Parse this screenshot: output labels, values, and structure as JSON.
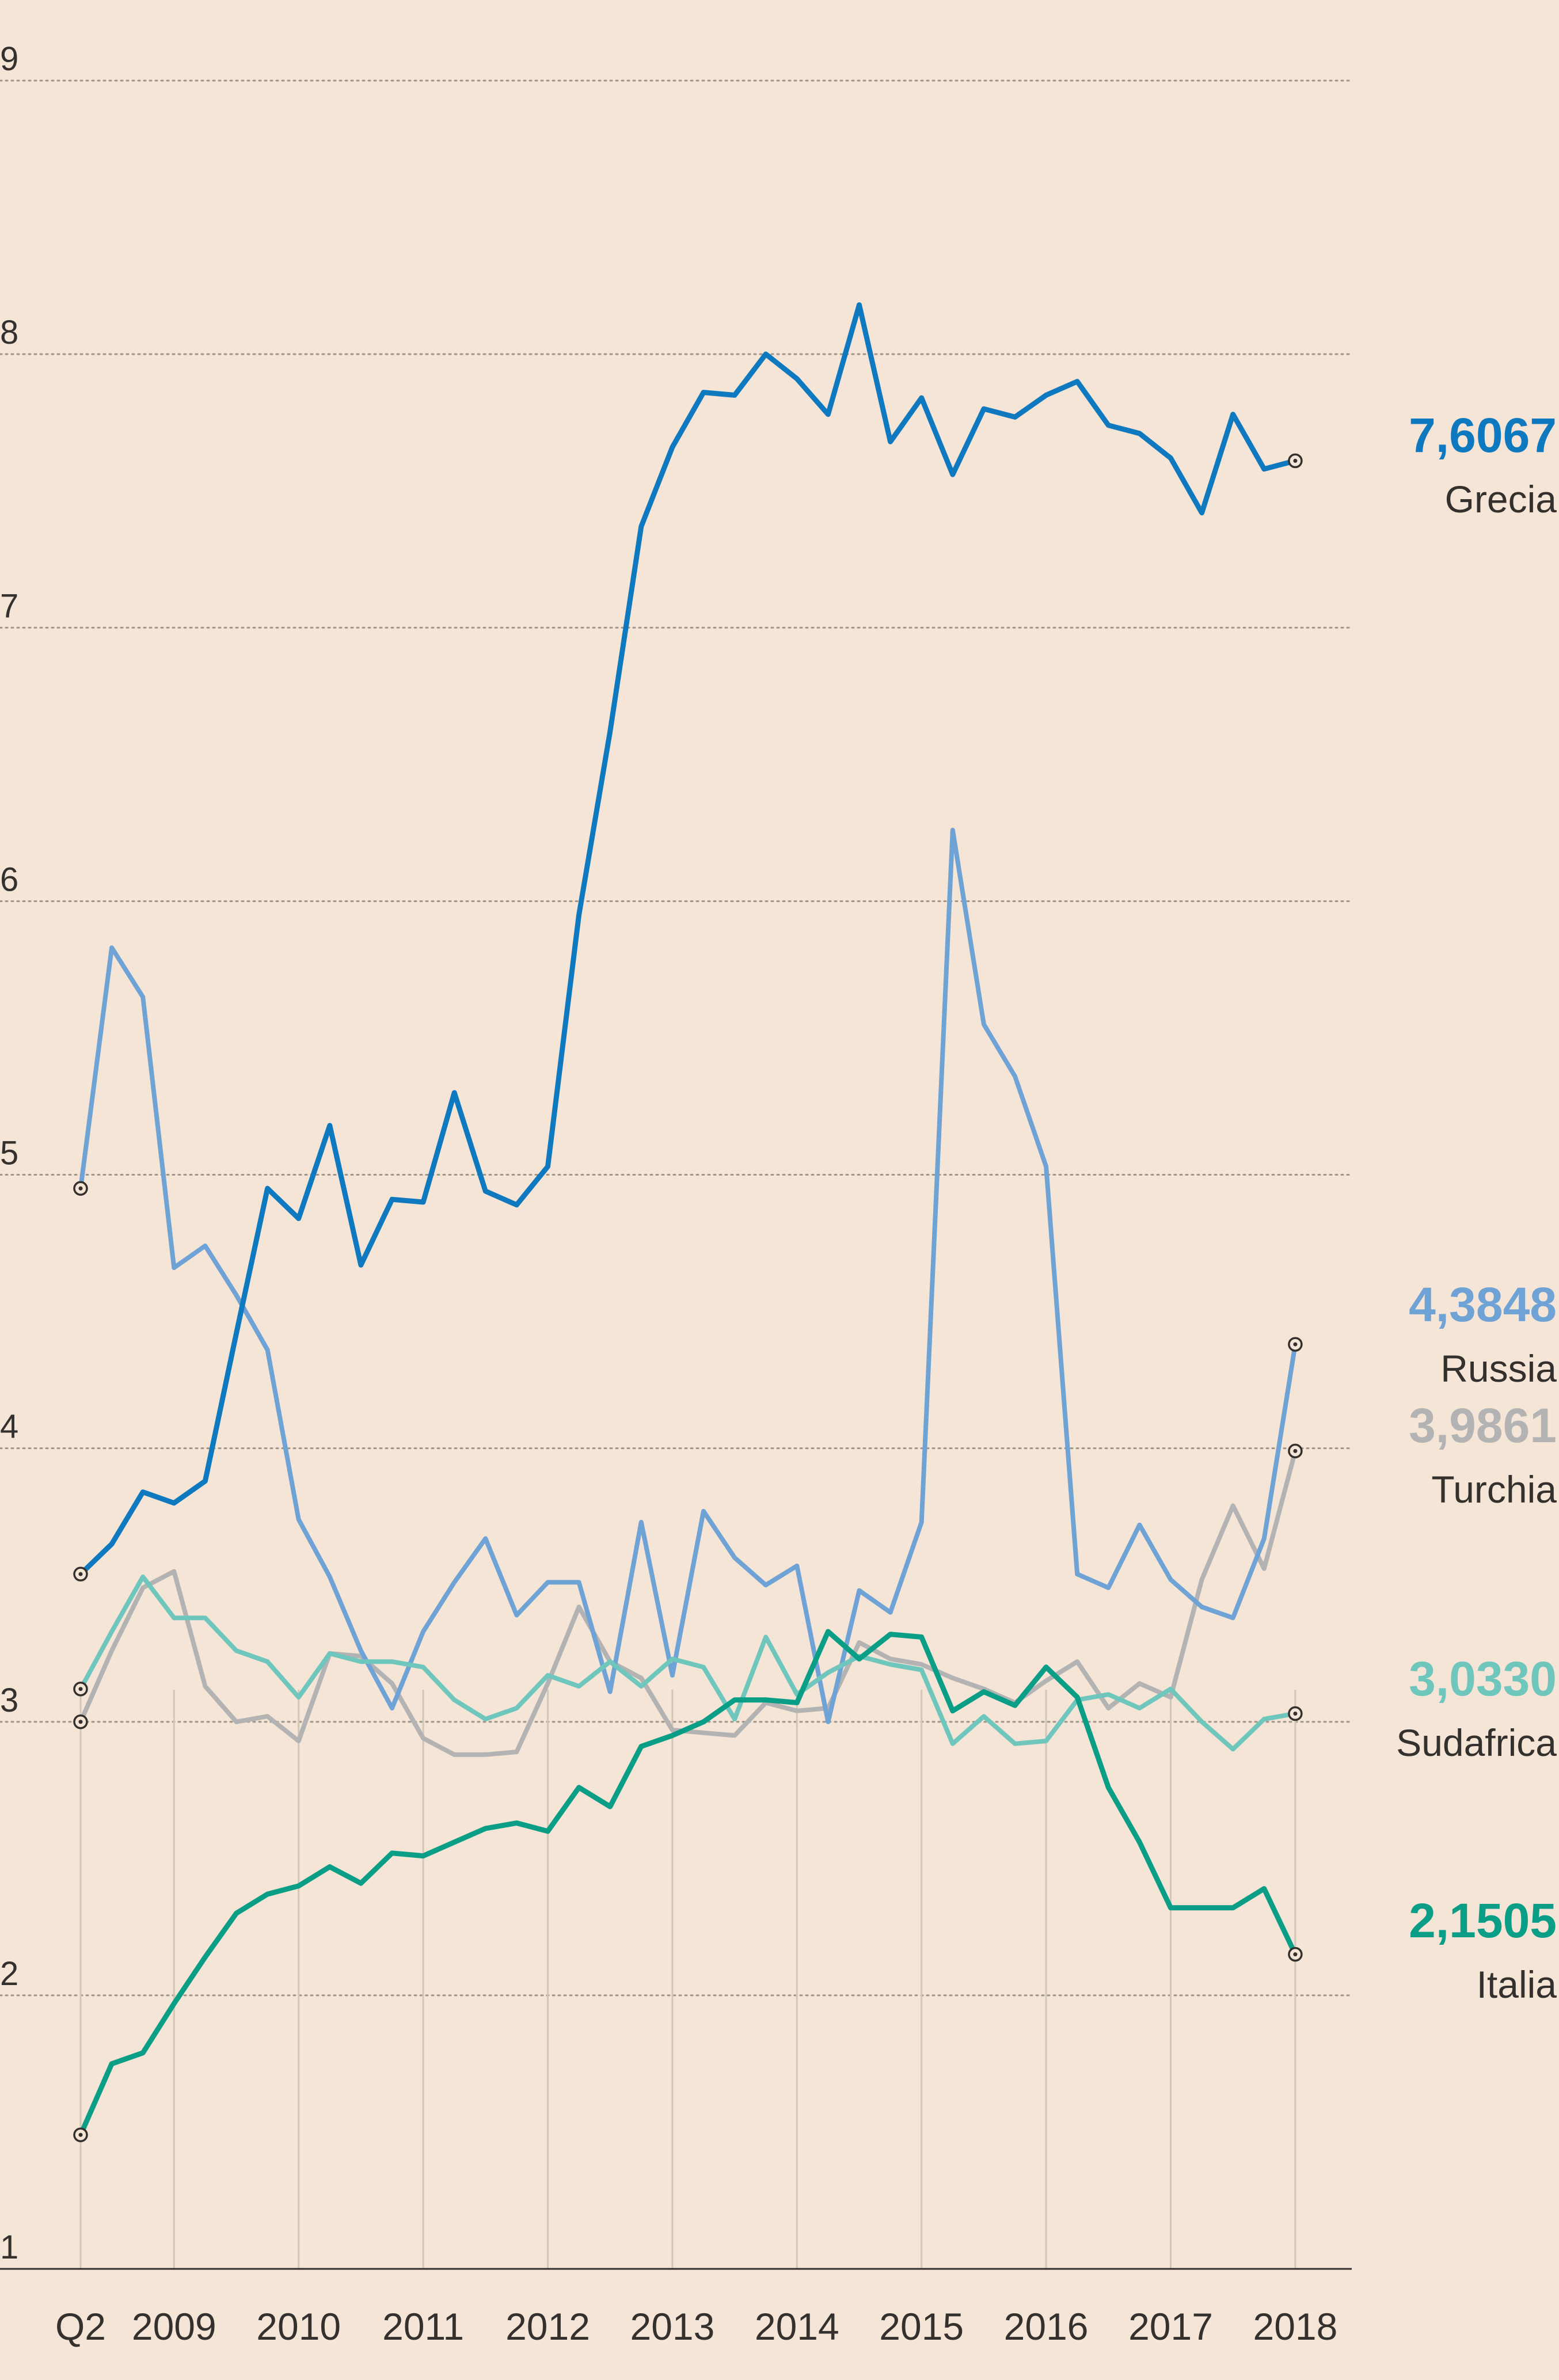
{
  "chart_data": {
    "type": "line",
    "x_start": "Q2 2008",
    "x_step": "quarter",
    "x_tick_labels": [
      "Q2",
      "2009",
      "2010",
      "2011",
      "2012",
      "2013",
      "2014",
      "2015",
      "2016",
      "2017",
      "2018"
    ],
    "x_tick_quarter_index": [
      0,
      3,
      7,
      11,
      15,
      19,
      23,
      27,
      31,
      35,
      39
    ],
    "y_tick_labels": [
      "1",
      "2",
      "3",
      "4",
      "5",
      "6",
      "7",
      "8",
      "9"
    ],
    "ylim": [
      1,
      9
    ],
    "grid": true,
    "series": [
      {
        "name": "Grecia",
        "end_label": "7,6067",
        "color": "#0f79c0",
        "stroke": 9,
        "values": [
          3.54,
          3.65,
          3.84,
          3.8,
          3.88,
          4.42,
          4.95,
          4.84,
          5.18,
          4.67,
          4.91,
          4.9,
          5.3,
          4.94,
          4.89,
          5.03,
          5.95,
          6.62,
          7.37,
          7.66,
          7.86,
          7.85,
          8.0,
          7.91,
          7.78,
          8.18,
          7.68,
          7.84,
          7.56,
          7.8,
          7.77,
          7.85,
          7.9,
          7.74,
          7.71,
          7.62,
          7.42,
          7.78,
          7.58,
          7.61
        ]
      },
      {
        "name": "Russia",
        "end_label": "4,3848",
        "color": "#6fa2d5",
        "stroke": 8,
        "values": [
          4.95,
          5.83,
          5.65,
          4.66,
          4.74,
          4.56,
          4.36,
          3.74,
          3.53,
          3.26,
          3.05,
          3.33,
          3.51,
          3.67,
          3.39,
          3.51,
          3.51,
          3.11,
          3.73,
          3.17,
          3.77,
          3.6,
          3.5,
          3.57,
          3.0,
          3.48,
          3.4,
          3.73,
          6.26,
          5.55,
          5.36,
          5.03,
          3.54,
          3.49,
          3.72,
          3.52,
          3.42,
          3.38,
          3.67,
          4.38
        ]
      },
      {
        "name": "Turchia",
        "end_label": "3,9861",
        "color": "#b3b3b3",
        "stroke": 8,
        "values": [
          3.0,
          3.26,
          3.49,
          3.55,
          3.13,
          3.0,
          3.02,
          2.93,
          3.25,
          3.24,
          3.14,
          2.94,
          2.88,
          2.88,
          2.89,
          3.14,
          3.42,
          3.22,
          3.16,
          2.97,
          2.96,
          2.95,
          3.07,
          3.04,
          3.05,
          3.29,
          3.23,
          3.21,
          3.16,
          3.12,
          3.07,
          3.15,
          3.22,
          3.05,
          3.14,
          3.09,
          3.52,
          3.79,
          3.56,
          3.99
        ]
      },
      {
        "name": "Sudafrica",
        "end_label": "3,0330",
        "color": "#6fc6bc",
        "stroke": 8,
        "values": [
          3.12,
          3.33,
          3.53,
          3.38,
          3.38,
          3.26,
          3.22,
          3.09,
          3.25,
          3.22,
          3.22,
          3.2,
          3.08,
          3.01,
          3.05,
          3.17,
          3.13,
          3.22,
          3.13,
          3.23,
          3.2,
          3.01,
          3.31,
          3.1,
          3.18,
          3.24,
          3.21,
          3.19,
          2.92,
          3.02,
          2.92,
          2.93,
          3.08,
          3.1,
          3.05,
          3.12,
          3.0,
          2.9,
          3.01,
          3.03
        ]
      },
      {
        "name": "Italia",
        "end_label": "2,1505",
        "color": "#0a9e86",
        "stroke": 9,
        "values": [
          1.49,
          1.75,
          1.79,
          1.97,
          2.14,
          2.3,
          2.37,
          2.4,
          2.47,
          2.41,
          2.52,
          2.51,
          2.56,
          2.61,
          2.63,
          2.6,
          2.76,
          2.69,
          2.91,
          2.95,
          3.0,
          3.08,
          3.08,
          3.07,
          3.33,
          3.23,
          3.32,
          3.31,
          3.04,
          3.11,
          3.06,
          3.2,
          3.09,
          2.76,
          2.56,
          2.32,
          2.32,
          2.32,
          2.39,
          2.15
        ]
      }
    ]
  }
}
